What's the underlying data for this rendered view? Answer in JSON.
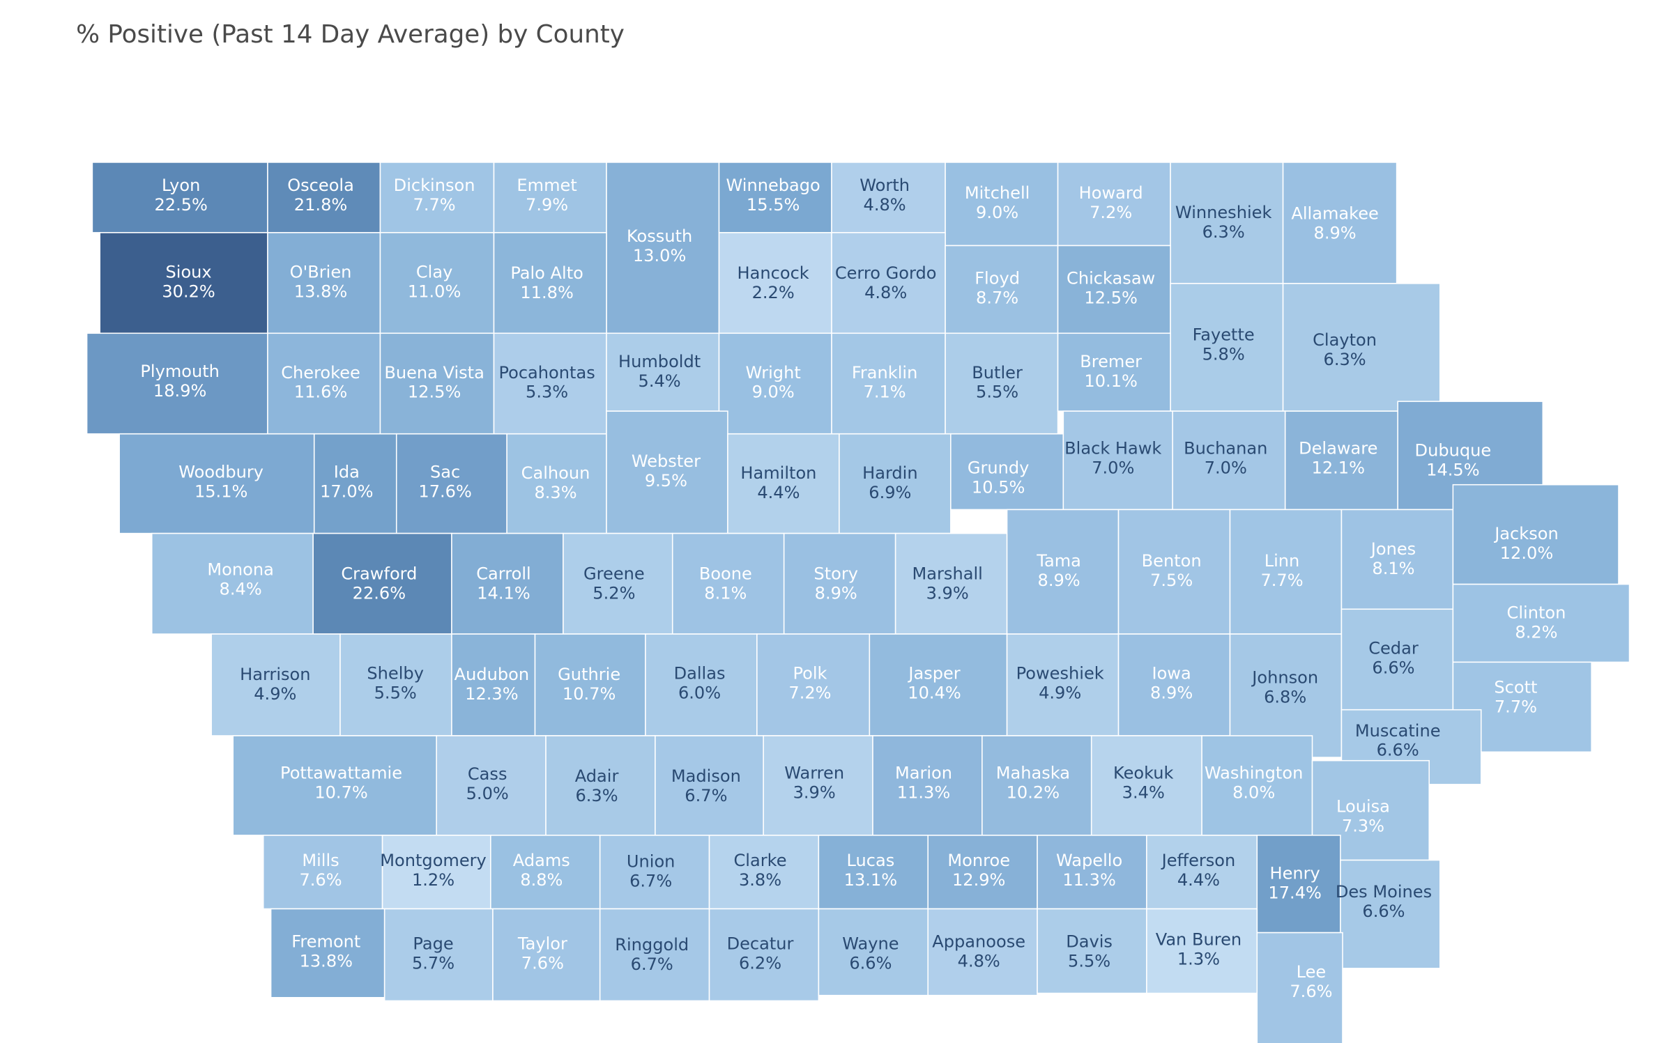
{
  "title": "% Positive (Past 14 Day Average) by County",
  "map": {
    "type": "choropleth",
    "colors": [
      "#c3dcf2",
      "#9cc2e3",
      "#7aa7d0",
      "#5a86b4",
      "#3c5f8e"
    ],
    "names": [
      "Lyon",
      "Osceola",
      "Dickinson",
      "Emmet",
      "Kossuth",
      "Winnebago",
      "Worth",
      "Mitchell",
      "Howard",
      "Winneshiek",
      "Allamakee",
      "Sioux",
      "O'Brien",
      "Clay",
      "Palo Alto",
      "Hancock",
      "Cerro Gordo",
      "Floyd",
      "Chickasaw",
      "Fayette",
      "Clayton",
      "Plymouth",
      "Cherokee",
      "Buena Vista",
      "Pocahontas",
      "Humboldt",
      "Wright",
      "Franklin",
      "Butler",
      "Bremer",
      "Woodbury",
      "Ida",
      "Sac",
      "Calhoun",
      "Webster",
      "Hamilton",
      "Hardin",
      "Grundy",
      "Black Hawk",
      "Buchanan",
      "Delaware",
      "Dubuque",
      "Monona",
      "Crawford",
      "Carroll",
      "Greene",
      "Boone",
      "Story",
      "Marshall",
      "Tama",
      "Benton",
      "Linn",
      "Jones",
      "Jackson",
      "Harrison",
      "Shelby",
      "Audubon",
      "Guthrie",
      "Dallas",
      "Polk",
      "Jasper",
      "Poweshiek",
      "Iowa",
      "Johnson",
      "Cedar",
      "Clinton",
      "Scott",
      "Muscatine",
      "Pottawattamie",
      "Cass",
      "Adair",
      "Madison",
      "Warren",
      "Marion",
      "Mahaska",
      "Keokuk",
      "Washington",
      "Louisa",
      "Mills",
      "Montgomery",
      "Adams",
      "Union",
      "Clarke",
      "Lucas",
      "Monroe",
      "Wapello",
      "Jefferson",
      "Henry",
      "Des Moines",
      "Fremont",
      "Page",
      "Taylor",
      "Ringgold",
      "Decatur",
      "Wayne",
      "Appanoose",
      "Davis",
      "Van Buren",
      "Lee"
    ],
    "values": [
      22.5,
      21.8,
      7.7,
      7.9,
      13.0,
      15.5,
      4.8,
      9.0,
      7.2,
      6.3,
      8.9,
      30.2,
      13.8,
      11.0,
      11.8,
      2.2,
      4.8,
      8.7,
      12.5,
      5.8,
      6.3,
      18.9,
      11.6,
      12.5,
      5.3,
      5.4,
      9.0,
      7.1,
      5.5,
      10.1,
      15.1,
      17.0,
      17.6,
      8.3,
      9.5,
      4.4,
      6.9,
      10.5,
      7.0,
      7.0,
      12.1,
      14.5,
      8.4,
      22.6,
      14.1,
      5.2,
      8.1,
      8.9,
      3.9,
      8.9,
      7.5,
      7.7,
      8.1,
      12.0,
      4.9,
      5.5,
      12.3,
      10.7,
      6.0,
      7.2,
      10.4,
      4.9,
      8.9,
      6.8,
      6.6,
      8.2,
      7.7,
      6.6,
      10.7,
      5.0,
      6.3,
      6.7,
      3.9,
      11.3,
      10.2,
      3.4,
      8.0,
      7.3,
      7.6,
      1.2,
      8.8,
      6.7,
      3.8,
      13.1,
      12.9,
      11.3,
      4.4,
      17.4,
      6.6,
      13.8,
      5.7,
      7.6,
      6.7,
      6.2,
      6.6,
      4.8,
      5.5,
      1.3,
      7.6
    ],
    "value_labels": [
      "22.5%",
      "21.8%",
      "7.7%",
      "7.9%",
      "13.0%",
      "15.5%",
      "4.8%",
      "9.0%",
      "7.2%",
      "6.3%",
      "8.9%",
      "30.2%",
      "13.8%",
      "11.0%",
      "11.8%",
      "2.2%",
      "4.8%",
      "8.7%",
      "12.5%",
      "5.8%",
      "6.3%",
      "18.9%",
      "11.6%",
      "12.5%",
      "5.3%",
      "5.4%",
      "9.0%",
      "7.1%",
      "5.5%",
      "10.1%",
      "15.1%",
      "17.0%",
      "17.6%",
      "8.3%",
      "9.5%",
      "4.4%",
      "6.9%",
      "10.5%",
      "7.0%",
      "7.0%",
      "12.1%",
      "14.5%",
      "8.4%",
      "22.6%",
      "14.1%",
      "5.2%",
      "8.1%",
      "8.9%",
      "3.9%",
      "8.9%",
      "7.5%",
      "7.7%",
      "8.1%",
      "12.0%",
      "4.9%",
      "5.5%",
      "12.3%",
      "10.7%",
      "6.0%",
      "7.2%",
      "10.4%",
      "4.9%",
      "8.9%",
      "6.8%",
      "6.6%",
      "8.2%",
      "7.7%",
      "6.6%",
      "10.7%",
      "5.0%",
      "6.3%",
      "6.7%",
      "3.9%",
      "11.3%",
      "10.2%",
      "3.4%",
      "8.0%",
      "7.3%",
      "7.6%",
      "1.2%",
      "8.8%",
      "6.7%",
      "3.8%",
      "13.1%",
      "12.9%",
      "11.3%",
      "4.4%",
      "17.4%",
      "6.6%",
      "13.8%",
      "5.7%",
      "7.6%",
      "6.7%",
      "6.2%",
      "6.6%",
      "4.8%",
      "5.5%",
      "1.3%",
      "7.6%"
    ]
  }
}
